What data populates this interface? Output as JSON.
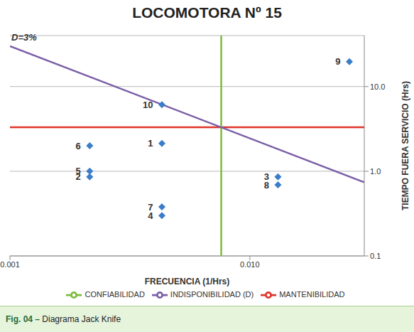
{
  "chart_data": {
    "type": "scatter",
    "title": "LOCOMOTORA Nº 15",
    "x_label": "FRECUENCIA (1/Hrs)",
    "y_label": "TIEMPO FUERA SERVICIO (Hrs)",
    "caption": "Fig. 04 – Diagrama Jack Knife",
    "log": true,
    "grid": true,
    "legend": "bottom",
    "xlim": [
      0.001,
      0.03
    ],
    "ylim": [
      0.1,
      40
    ],
    "xticks": [
      0.001,
      {
        "value": 0.01,
        "label": "0.010"
      }
    ],
    "yticks": [
      0.1,
      {
        "value": 1,
        "label": "1.0"
      },
      {
        "value": 10,
        "label": "10.0"
      }
    ],
    "points": {
      "labels": [
        "1",
        "2",
        "3",
        "4",
        "5",
        "6",
        "7",
        "8",
        "9",
        "10"
      ],
      "x": [
        0.0043,
        0.00215,
        0.0131,
        0.0043,
        0.00215,
        0.00215,
        0.0043,
        0.0131,
        0.026,
        0.0043
      ],
      "y": [
        2.13,
        0.86,
        0.86,
        0.3,
        1.0,
        2.0,
        0.38,
        0.69,
        19.7,
        6.1
      ],
      "color": "#3a7dc9",
      "marker": "diamond"
    },
    "series": [
      {
        "name": "MANTENIBILIDAD",
        "color": "#e0342b",
        "type": "line",
        "x": [
          0.001,
          0.03
        ],
        "values": [
          3.3,
          3.3
        ]
      },
      {
        "name": "CONFIABILIDAD",
        "color": "#7dbb3c",
        "type": "line",
        "x": [
          0.0076,
          0.0076
        ],
        "values": [
          0.1,
          40
        ]
      },
      {
        "name": "INDISPONIBILIDAD (D)",
        "color": "#7b5ea7",
        "type": "line",
        "x": [
          0.001,
          0.03
        ],
        "values": [
          30,
          0.74
        ]
      }
    ],
    "annotations": [
      {
        "text": "D=3%",
        "x": 0.001,
        "y": 30
      }
    ]
  }
}
